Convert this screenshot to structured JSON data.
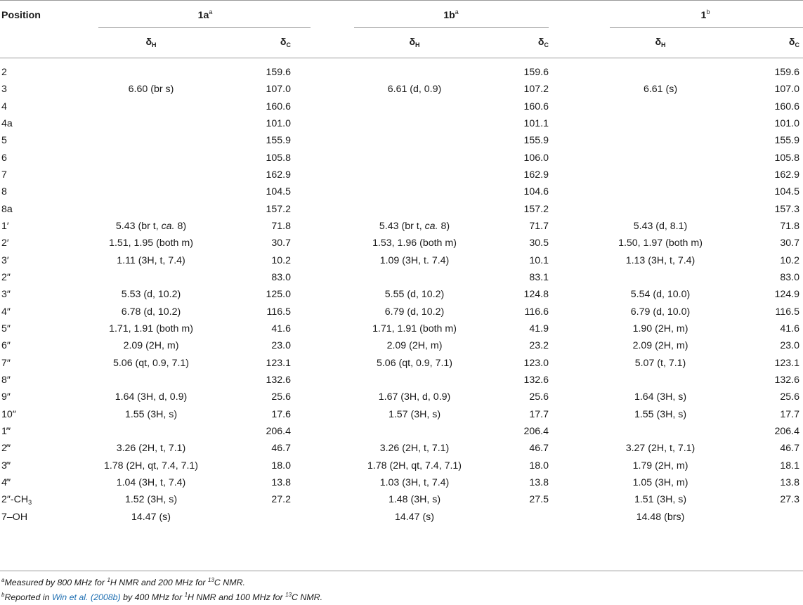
{
  "header": {
    "position_label": "Position",
    "groups": [
      {
        "compound": "1a",
        "mark": "a"
      },
      {
        "compound": "1b",
        "mark": "a"
      },
      {
        "compound": "1",
        "mark": "b"
      }
    ],
    "dh_symbol": "δ",
    "dh_sub": "H",
    "dc_symbol": "δ",
    "dc_sub": "C"
  },
  "rows": [
    {
      "pos": "2",
      "h1": "",
      "c1": "159.6",
      "h2": "",
      "c2": "159.6",
      "h3": "",
      "c3": "159.6"
    },
    {
      "pos": "3",
      "h1": "6.60 (br s)",
      "c1": "107.0",
      "h2": "6.61 (d, 0.9)",
      "c2": "107.2",
      "h3": "6.61 (s)",
      "c3": "107.0"
    },
    {
      "pos": "4",
      "h1": "",
      "c1": "160.6",
      "h2": "",
      "c2": "160.6",
      "h3": "",
      "c3": "160.6"
    },
    {
      "pos": "4a",
      "h1": "",
      "c1": "101.0",
      "h2": "",
      "c2": "101.1",
      "h3": "",
      "c3": "101.0"
    },
    {
      "pos": "5",
      "h1": "",
      "c1": "155.9",
      "h2": "",
      "c2": "155.9",
      "h3": "",
      "c3": "155.9"
    },
    {
      "pos": "6",
      "h1": "",
      "c1": "105.8",
      "h2": "",
      "c2": "106.0",
      "h3": "",
      "c3": "105.8"
    },
    {
      "pos": "7",
      "h1": "",
      "c1": "162.9",
      "h2": "",
      "c2": "162.9",
      "h3": "",
      "c3": "162.9"
    },
    {
      "pos": "8",
      "h1": "",
      "c1": "104.5",
      "h2": "",
      "c2": "104.6",
      "h3": "",
      "c3": "104.5"
    },
    {
      "pos": "8a",
      "h1": "",
      "c1": "157.2",
      "h2": "",
      "c2": "157.2",
      "h3": "",
      "c3": "157.3"
    },
    {
      "pos": "1′",
      "h1": "5.43 (br t, ca. 8)",
      "c1": "71.8",
      "h2": "5.43 (br t, ca. 8)",
      "c2": "71.7",
      "h3": "5.43 (d, 8.1)",
      "c3": "71.8"
    },
    {
      "pos": "2′",
      "h1": "1.51, 1.95 (both m)",
      "c1": "30.7",
      "h2": "1.53, 1.96 (both m)",
      "c2": "30.5",
      "h3": "1.50, 1.97 (both m)",
      "c3": "30.7"
    },
    {
      "pos": "3′",
      "h1": "1.11 (3H, t, 7.4)",
      "c1": "10.2",
      "h2": "1.09 (3H, t. 7.4)",
      "c2": "10.1",
      "h3": "1.13 (3H, t, 7.4)",
      "c3": "10.2"
    },
    {
      "pos": "2″",
      "h1": "",
      "c1": "83.0",
      "h2": "",
      "c2": "83.1",
      "h3": "",
      "c3": "83.0"
    },
    {
      "pos": "3″",
      "h1": "5.53 (d, 10.2)",
      "c1": "125.0",
      "h2": "5.55 (d, 10.2)",
      "c2": "124.8",
      "h3": "5.54 (d, 10.0)",
      "c3": "124.9"
    },
    {
      "pos": "4″",
      "h1": "6.78 (d, 10.2)",
      "c1": "116.5",
      "h2": "6.79 (d, 10.2)",
      "c2": "116.6",
      "h3": "6.79 (d, 10.0)",
      "c3": "116.5"
    },
    {
      "pos": "5″",
      "h1": "1.71, 1.91 (both m)",
      "c1": "41.6",
      "h2": "1.71, 1.91 (both m)",
      "c2": "41.9",
      "h3": "1.90 (2H, m)",
      "c3": "41.6"
    },
    {
      "pos": "6″",
      "h1": "2.09 (2H, m)",
      "c1": "23.0",
      "h2": "2.09 (2H, m)",
      "c2": "23.2",
      "h3": "2.09 (2H, m)",
      "c3": "23.0"
    },
    {
      "pos": "7″",
      "h1": "5.06 (qt, 0.9, 7.1)",
      "c1": "123.1",
      "h2": "5.06 (qt, 0.9, 7.1)",
      "c2": "123.0",
      "h3": "5.07 (t, 7.1)",
      "c3": "123.1"
    },
    {
      "pos": "8″",
      "h1": "",
      "c1": "132.6",
      "h2": "",
      "c2": "132.6",
      "h3": "",
      "c3": "132.6"
    },
    {
      "pos": "9″",
      "h1": "1.64 (3H, d, 0.9)",
      "c1": "25.6",
      "h2": "1.67 (3H, d, 0.9)",
      "c2": "25.6",
      "h3": "1.64 (3H, s)",
      "c3": "25.6"
    },
    {
      "pos": "10″",
      "h1": "1.55 (3H, s)",
      "c1": "17.6",
      "h2": "1.57 (3H, s)",
      "c2": "17.7",
      "h3": "1.55 (3H, s)",
      "c3": "17.7"
    },
    {
      "pos": "1‴",
      "h1": "",
      "c1": "206.4",
      "h2": "",
      "c2": "206.4",
      "h3": "",
      "c3": "206.4"
    },
    {
      "pos": "2‴",
      "h1": "3.26 (2H, t, 7.1)",
      "c1": "46.7",
      "h2": "3.26 (2H, t, 7.1)",
      "c2": "46.7",
      "h3": "3.27 (2H, t, 7.1)",
      "c3": "46.7"
    },
    {
      "pos": "3‴",
      "h1": "1.78 (2H, qt, 7.4, 7.1)",
      "c1": "18.0",
      "h2": "1.78 (2H, qt, 7.4, 7.1)",
      "c2": "18.0",
      "h3": "1.79 (2H, m)",
      "c3": "18.1"
    },
    {
      "pos": "4‴",
      "h1": "1.04 (3H, t, 7.4)",
      "c1": "13.8",
      "h2": "1.03 (3H, t, 7.4)",
      "c2": "13.8",
      "h3": "1.05 (3H, m)",
      "c3": "13.8"
    },
    {
      "pos": "2″-CH",
      "pos_sub": "3",
      "h1": "1.52 (3H, s)",
      "c1": "27.2",
      "h2": "1.48 (3H, s)",
      "c2": "27.5",
      "h3": "1.51 (3H, s)",
      "c3": "27.3"
    },
    {
      "pos": "7–OH",
      "h1": "14.47 (s)",
      "c1": "",
      "h2": "14.47 (s)",
      "c2": "",
      "h3": "14.48 (brs)",
      "c3": ""
    }
  ],
  "footnotes": [
    {
      "mark": "a",
      "parts": [
        "Measured by 800 MHz for ",
        "1",
        "H NMR and 200 MHz for ",
        "13",
        "C NMR."
      ]
    },
    {
      "mark": "b",
      "pre": "Reported in ",
      "link": "Win et al. (2008b)",
      "parts": [
        " by 400 MHz for ",
        "1",
        "H NMR and 100 MHz for ",
        "13",
        "C NMR."
      ]
    }
  ]
}
